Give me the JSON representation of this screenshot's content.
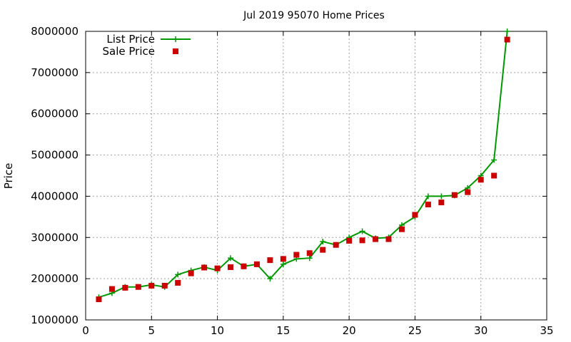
{
  "chart_data": {
    "type": "line",
    "title": "Jul 2019 95070 Home Prices",
    "xlabel": "",
    "ylabel": "Price",
    "xlim": [
      0,
      35
    ],
    "ylim": [
      1000000,
      8000000
    ],
    "xticks": [
      0,
      5,
      10,
      15,
      20,
      25,
      30,
      35
    ],
    "yticks": [
      1000000,
      2000000,
      3000000,
      4000000,
      5000000,
      6000000,
      7000000,
      8000000
    ],
    "grid": true,
    "legend_position": "top-left",
    "series": [
      {
        "name": "List Price",
        "style": "line-plus",
        "color": "#009900",
        "x": [
          1,
          2,
          3,
          4,
          5,
          6,
          7,
          8,
          9,
          10,
          11,
          12,
          13,
          14,
          15,
          16,
          17,
          18,
          19,
          20,
          21,
          22,
          23,
          24,
          25,
          26,
          27,
          28,
          29,
          30,
          31,
          32
        ],
        "y": [
          1550000,
          1650000,
          1800000,
          1800000,
          1850000,
          1800000,
          2100000,
          2200000,
          2280000,
          2200000,
          2500000,
          2300000,
          2350000,
          2000000,
          2350000,
          2480000,
          2500000,
          2900000,
          2820000,
          3000000,
          3150000,
          2980000,
          3000000,
          3300000,
          3500000,
          4000000,
          4000000,
          4020000,
          4200000,
          4500000,
          4880000,
          8000000
        ]
      },
      {
        "name": "Sale Price",
        "style": "square-points",
        "color": "#cc0000",
        "x": [
          1,
          2,
          3,
          4,
          5,
          6,
          7,
          8,
          9,
          10,
          11,
          12,
          13,
          14,
          15,
          16,
          17,
          18,
          19,
          20,
          21,
          22,
          23,
          24,
          25,
          26,
          27,
          28,
          29,
          30,
          31,
          32
        ],
        "y": [
          1500000,
          1750000,
          1780000,
          1800000,
          1830000,
          1830000,
          1900000,
          2130000,
          2270000,
          2250000,
          2280000,
          2300000,
          2350000,
          2450000,
          2480000,
          2580000,
          2620000,
          2700000,
          2820000,
          2920000,
          2930000,
          2960000,
          2960000,
          3200000,
          3550000,
          3800000,
          3850000,
          4030000,
          4100000,
          4400000,
          4500000,
          7800000
        ]
      }
    ]
  }
}
